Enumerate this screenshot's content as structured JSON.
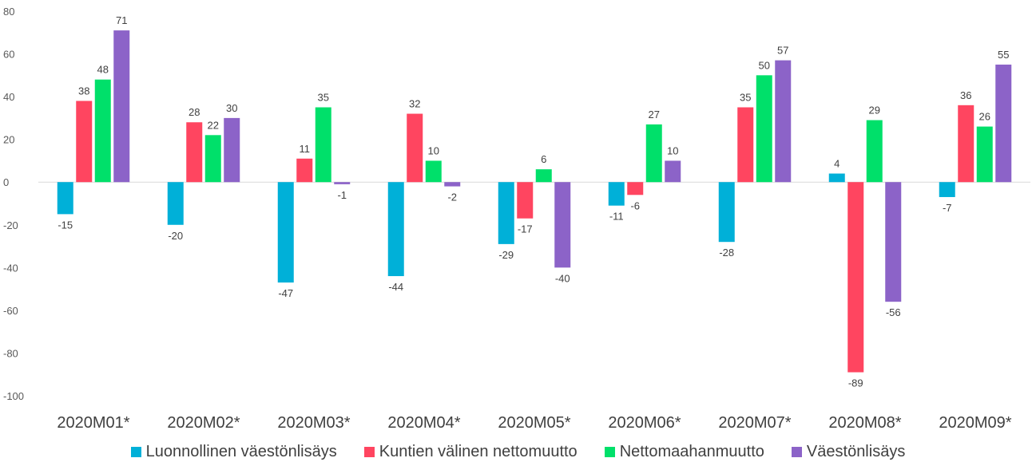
{
  "chart_data": {
    "type": "bar",
    "title": "",
    "xlabel": "",
    "ylabel": "",
    "ylim": [
      -100,
      80
    ],
    "yticks": [
      -100,
      -80,
      -60,
      -40,
      -20,
      0,
      20,
      40,
      60,
      80
    ],
    "categories": [
      "2020M01*",
      "2020M02*",
      "2020M03*",
      "2020M04*",
      "2020M05*",
      "2020M06*",
      "2020M07*",
      "2020M08*",
      "2020M09*"
    ],
    "series": [
      {
        "name": "Luonnollinen väestönlisäys",
        "color": "#00B0D8",
        "values": [
          -15,
          -20,
          -47,
          -44,
          -29,
          -11,
          -28,
          4,
          -7
        ]
      },
      {
        "name": "Kuntien välinen nettomuutto",
        "color": "#FF4560",
        "values": [
          38,
          28,
          11,
          32,
          -17,
          -6,
          35,
          -89,
          36
        ]
      },
      {
        "name": "Nettomaahanmuutto",
        "color": "#00E06A",
        "values": [
          48,
          22,
          35,
          10,
          6,
          27,
          50,
          29,
          26
        ]
      },
      {
        "name": "Väestönlisäys",
        "color": "#8C63C8",
        "values": [
          71,
          30,
          -1,
          -2,
          -40,
          10,
          57,
          -56,
          55
        ]
      }
    ],
    "grid": false,
    "legend_position": "bottom",
    "data_labels": true
  }
}
